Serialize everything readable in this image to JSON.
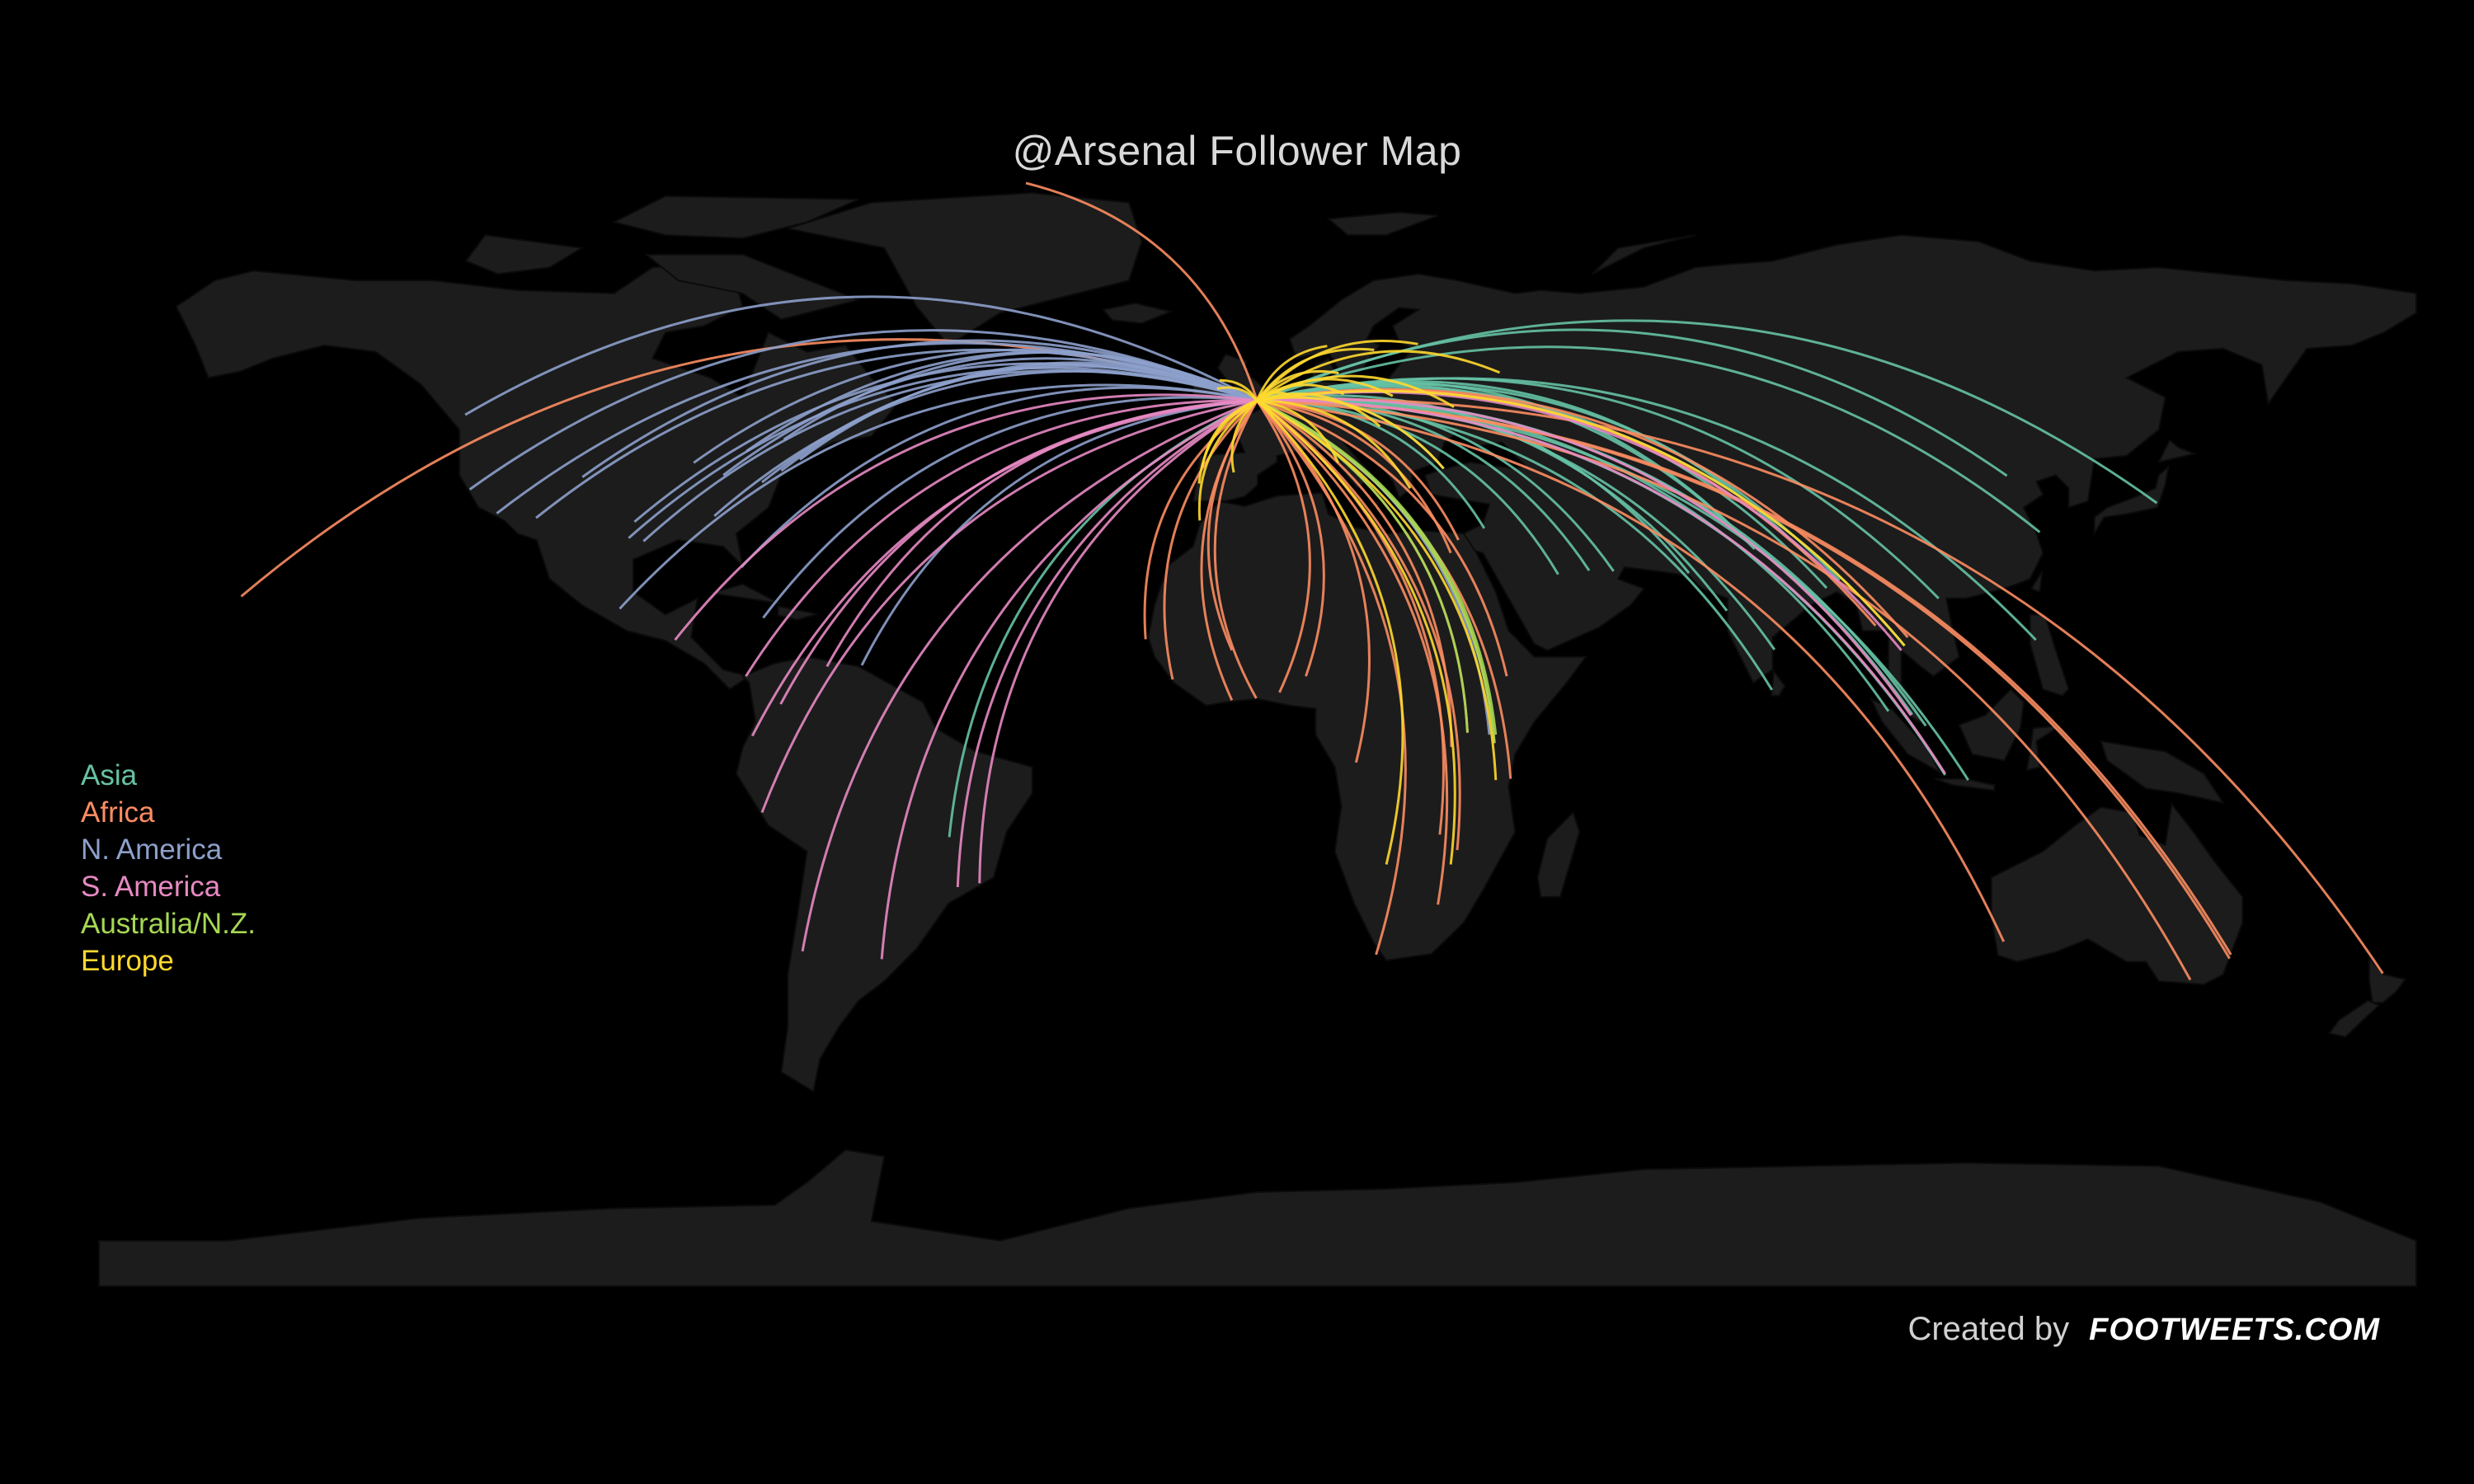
{
  "title": "@Arsenal Follower Map",
  "credit": {
    "label": "Created by",
    "brand": "FOOTWEETS.COM"
  },
  "colors": {
    "background": "#000000",
    "land": "#1c1c1c",
    "border": "#0b0b0b",
    "title": "#d9d9d9"
  },
  "legend": [
    {
      "label": "Asia",
      "color": "#66c2a5"
    },
    {
      "label": "Africa",
      "color": "#fc8d62"
    },
    {
      "label": "N. America",
      "color": "#8da0cb"
    },
    {
      "label": "S. America",
      "color": "#e78ac3"
    },
    {
      "label": "Australia/N.Z.",
      "color": "#a6d854"
    },
    {
      "label": "Europe",
      "color": "#ffd92f"
    }
  ],
  "origin": {
    "place": "London",
    "lon": -0.1,
    "lat": 51.5
  },
  "routes": {
    "Asia": [
      [
        139.7,
        35.7
      ],
      [
        116.4,
        39.9
      ],
      [
        121.5,
        31.2
      ],
      [
        103.8,
        1.35
      ],
      [
        101.7,
        3.1
      ],
      [
        100.5,
        13.7
      ],
      [
        106.8,
        -6.2
      ],
      [
        120.9,
        14.6
      ],
      [
        77.2,
        28.6
      ],
      [
        72.9,
        19.1
      ],
      [
        88.4,
        22.6
      ],
      [
        90.4,
        23.8
      ],
      [
        80.3,
        13.1
      ],
      [
        67.0,
        24.9
      ],
      [
        85.3,
        27.7
      ],
      [
        79.9,
        6.9
      ],
      [
        55.3,
        25.2
      ],
      [
        51.5,
        25.3
      ],
      [
        46.7,
        24.7
      ],
      [
        35.2,
        31.8
      ],
      [
        -47.9,
        -15.8
      ],
      [
        28.9,
        41.0
      ],
      [
        74.3,
        31.5
      ],
      [
        98.0,
        3.6
      ],
      [
        110.4,
        -7.0
      ],
      [
        105.8,
        21.0
      ]
    ],
    "Africa": [
      [
        3.4,
        6.5
      ],
      [
        -0.2,
        5.6
      ],
      [
        36.8,
        -1.3
      ],
      [
        31.2,
        30.0
      ],
      [
        28.0,
        -26.2
      ],
      [
        18.4,
        -33.9
      ],
      [
        32.6,
        0.3
      ],
      [
        39.3,
        -6.8
      ],
      [
        -17.4,
        14.7
      ],
      [
        38.7,
        9.0
      ],
      [
        -13.2,
        8.5
      ],
      [
        30.1,
        -1.9
      ],
      [
        15.3,
        -4.3
      ],
      [
        28.3,
        -15.4
      ],
      [
        31.0,
        -17.8
      ],
      [
        7.5,
        9.0
      ],
      [
        -4.0,
        5.3
      ],
      [
        144.9,
        -37.8
      ],
      [
        151.2,
        -33.9
      ],
      [
        115.9,
        -31.9
      ],
      [
        174.8,
        -36.8
      ],
      [
        -157.9,
        21.3
      ],
      [
        -36.0,
        85.0
      ],
      [
        -4.0,
        13.0
      ],
      [
        30.0,
        28.0
      ],
      [
        96.0,
        16.8
      ],
      [
        101.0,
        15.0
      ],
      [
        151.0,
        -34.5
      ]
    ],
    "N. America": [
      [
        -74.0,
        40.7
      ],
      [
        -118.2,
        34.1
      ],
      [
        -87.6,
        41.9
      ],
      [
        -79.4,
        43.7
      ],
      [
        -73.6,
        45.5
      ],
      [
        -123.1,
        49.3
      ],
      [
        -122.4,
        37.8
      ],
      [
        -95.4,
        29.8
      ],
      [
        -80.2,
        25.8
      ],
      [
        -99.1,
        19.4
      ],
      [
        -77.0,
        38.9
      ],
      [
        -84.4,
        33.7
      ],
      [
        -71.1,
        42.4
      ],
      [
        -97.7,
        30.3
      ],
      [
        -104.9,
        39.7
      ],
      [
        -112.1,
        33.4
      ],
      [
        -96.8,
        32.8
      ],
      [
        -83.0,
        40.0
      ],
      [
        -76.8,
        18.0
      ],
      [
        -61.5,
        10.7
      ],
      [
        36.0,
        0.0
      ]
    ],
    "S. America": [
      [
        -46.6,
        -23.5
      ],
      [
        -58.4,
        -34.6
      ],
      [
        -74.1,
        4.7
      ],
      [
        -66.9,
        10.5
      ],
      [
        -77.0,
        -12.0
      ],
      [
        -79.5,
        9.0
      ],
      [
        -70.7,
        -33.4
      ],
      [
        -78.5,
        -0.2
      ],
      [
        -43.2,
        -22.9
      ],
      [
        -90.5,
        14.6
      ],
      [
        106.8,
        -6.0
      ],
      [
        101.5,
        3.0
      ],
      [
        100.0,
        13.0
      ]
    ],
    "Australia/N.Z.": [
      [
        36.8,
        -1.3
      ],
      [
        37.0,
        0.0
      ],
      [
        32.6,
        0.3
      ]
    ],
    "Europe": [
      [
        2.3,
        48.9
      ],
      [
        13.4,
        52.5
      ],
      [
        12.5,
        41.9
      ],
      [
        -3.7,
        40.4
      ],
      [
        -6.3,
        53.3
      ],
      [
        4.9,
        52.4
      ],
      [
        18.1,
        59.3
      ],
      [
        37.6,
        55.8
      ],
      [
        23.7,
        37.98
      ],
      [
        -9.1,
        38.7
      ],
      [
        30.5,
        50.5
      ],
      [
        21.0,
        52.2
      ],
      [
        28.9,
        41.0
      ],
      [
        19.0,
        47.5
      ],
      [
        10.8,
        59.9
      ],
      [
        12.6,
        55.7
      ],
      [
        24.9,
        60.2
      ],
      [
        -8.6,
        41.2
      ],
      [
        -5.9,
        54.6
      ],
      [
        100.5,
        13.7
      ],
      [
        20.0,
        -20.0
      ],
      [
        37.0,
        -7.0
      ],
      [
        30.0,
        -20.0
      ],
      [
        -9.0,
        33.0
      ]
    ]
  }
}
